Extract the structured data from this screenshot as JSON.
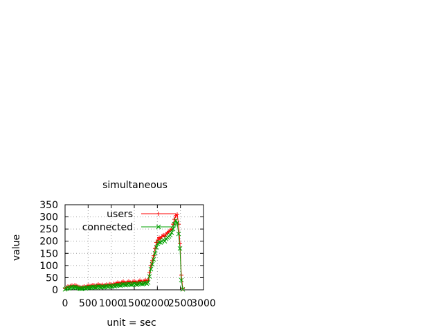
{
  "chart_data": {
    "type": "line",
    "title": "simultaneous",
    "xlabel": "unit = sec",
    "ylabel": "value",
    "xlim": [
      0,
      3000
    ],
    "ylim": [
      0,
      350
    ],
    "xticks": [
      0,
      500,
      1000,
      1500,
      2000,
      2500,
      3000
    ],
    "yticks": [
      0,
      50,
      100,
      150,
      200,
      250,
      300,
      350
    ],
    "grid": true,
    "legend_position": "top-right",
    "series": [
      {
        "name": "users",
        "color": "#ff0000",
        "marker": "plus",
        "x": [
          0,
          30,
          60,
          90,
          120,
          150,
          180,
          210,
          240,
          270,
          300,
          330,
          360,
          390,
          420,
          450,
          480,
          510,
          540,
          570,
          600,
          630,
          660,
          690,
          720,
          750,
          780,
          810,
          840,
          870,
          900,
          930,
          960,
          990,
          1020,
          1050,
          1080,
          1110,
          1140,
          1170,
          1200,
          1230,
          1260,
          1290,
          1320,
          1350,
          1380,
          1410,
          1440,
          1470,
          1500,
          1530,
          1560,
          1590,
          1620,
          1650,
          1680,
          1710,
          1740,
          1770,
          1800,
          1830,
          1860,
          1890,
          1920,
          1950,
          1980,
          2010,
          2040,
          2070,
          2100,
          2130,
          2160,
          2190,
          2220,
          2250,
          2280,
          2310,
          2340,
          2370,
          2400,
          2430,
          2460,
          2490,
          2520,
          2550
        ],
        "y": [
          5,
          10,
          14,
          12,
          16,
          18,
          15,
          19,
          17,
          14,
          12,
          10,
          9,
          12,
          14,
          11,
          16,
          18,
          15,
          17,
          20,
          18,
          16,
          19,
          22,
          20,
          18,
          21,
          17,
          20,
          22,
          19,
          24,
          22,
          20,
          25,
          23,
          27,
          30,
          28,
          26,
          31,
          34,
          30,
          28,
          32,
          35,
          31,
          29,
          33,
          36,
          32,
          30,
          34,
          38,
          35,
          33,
          36,
          40,
          37,
          40,
          70,
          100,
          120,
          140,
          170,
          195,
          205,
          215,
          210,
          220,
          225,
          218,
          230,
          235,
          240,
          245,
          250,
          270,
          290,
          305,
          310,
          270,
          190,
          60,
          5
        ]
      },
      {
        "name": "connected",
        "color": "#00a000",
        "marker": "cross",
        "x": [
          0,
          30,
          60,
          90,
          120,
          150,
          180,
          210,
          240,
          270,
          300,
          330,
          360,
          390,
          420,
          450,
          480,
          510,
          540,
          570,
          600,
          630,
          660,
          690,
          720,
          750,
          780,
          810,
          840,
          870,
          900,
          930,
          960,
          990,
          1020,
          1050,
          1080,
          1110,
          1140,
          1170,
          1200,
          1230,
          1260,
          1290,
          1320,
          1350,
          1380,
          1410,
          1440,
          1470,
          1500,
          1530,
          1560,
          1590,
          1620,
          1650,
          1680,
          1710,
          1740,
          1770,
          1800,
          1830,
          1860,
          1890,
          1920,
          1950,
          1980,
          2010,
          2040,
          2070,
          2100,
          2130,
          2160,
          2190,
          2220,
          2250,
          2280,
          2310,
          2340,
          2370,
          2400,
          2430,
          2460,
          2490,
          2520,
          2550
        ],
        "y": [
          2,
          5,
          8,
          6,
          10,
          12,
          9,
          11,
          10,
          8,
          6,
          5,
          4,
          6,
          8,
          6,
          9,
          10,
          8,
          10,
          12,
          11,
          9,
          12,
          14,
          12,
          10,
          13,
          11,
          13,
          15,
          12,
          16,
          14,
          13,
          17,
          15,
          18,
          20,
          19,
          17,
          21,
          23,
          21,
          19,
          22,
          25,
          22,
          20,
          23,
          26,
          23,
          21,
          24,
          27,
          25,
          23,
          26,
          28,
          26,
          30,
          55,
          85,
          105,
          125,
          150,
          175,
          190,
          195,
          195,
          200,
          205,
          200,
          210,
          215,
          220,
          225,
          235,
          250,
          270,
          285,
          275,
          230,
          170,
          40,
          2
        ]
      }
    ]
  }
}
